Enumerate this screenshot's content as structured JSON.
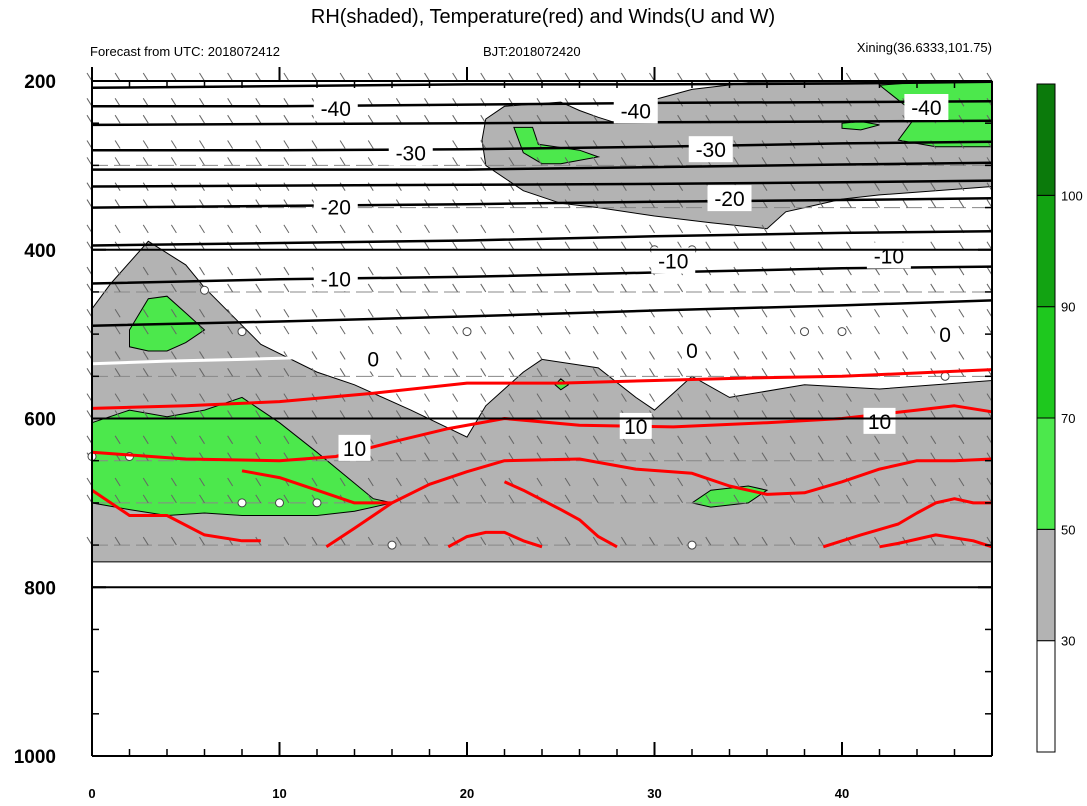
{
  "title": "RH(shaded), Temperature(red) and Winds(U and W)",
  "left_label": "Forecast from UTC: 2018072412",
  "center_label": "BJT:2018072420",
  "right_label": "Xining(36.6333,101.75)",
  "chart_data": {
    "type": "contour",
    "x": {
      "min": 0,
      "max": 48,
      "ticks": [
        0,
        10,
        20,
        30,
        40
      ],
      "tick_labels": [
        "0",
        "10",
        "20",
        "30",
        "40"
      ]
    },
    "y": {
      "min": 200,
      "max": 1000,
      "ticks": [
        200,
        400,
        600,
        800,
        1000
      ],
      "tick_labels": [
        "200",
        "400",
        "600",
        "800",
        "1000"
      ],
      "inverted": true
    },
    "colorbar": {
      "levels": [
        30,
        50,
        70,
        90,
        100
      ],
      "labels": [
        "30",
        "50",
        "70",
        "90",
        "100"
      ],
      "colors": [
        "#ffffff",
        "#b3b3b3",
        "#4ce84c",
        "#1ec81e",
        "#12a312",
        "#0b7a0b"
      ]
    },
    "rh_regions": [
      {
        "level": 30,
        "color": "#b3b3b3",
        "points": [
          [
            0,
            770
          ],
          [
            48,
            770
          ],
          [
            48,
            555
          ],
          [
            42,
            565
          ],
          [
            38,
            560
          ],
          [
            34,
            575
          ],
          [
            32,
            550
          ],
          [
            31,
            570
          ],
          [
            30,
            590
          ],
          [
            29,
            575
          ],
          [
            27,
            540
          ],
          [
            24,
            530
          ],
          [
            23,
            545
          ],
          [
            21,
            585
          ],
          [
            20,
            622
          ],
          [
            17,
            590
          ],
          [
            14,
            560
          ],
          [
            12,
            545
          ],
          [
            9,
            512
          ],
          [
            6,
            445
          ],
          [
            5,
            418
          ],
          [
            3,
            390
          ],
          [
            1,
            440
          ],
          [
            0,
            470
          ]
        ]
      },
      {
        "level": 30,
        "color": "#b3b3b3",
        "points": [
          [
            21,
            245
          ],
          [
            22,
            230
          ],
          [
            25,
            225
          ],
          [
            26,
            235
          ],
          [
            27,
            243
          ],
          [
            28,
            250
          ],
          [
            30,
            222
          ],
          [
            32,
            210
          ],
          [
            35,
            202
          ],
          [
            48,
            202
          ],
          [
            48,
            325
          ],
          [
            45,
            330
          ],
          [
            42,
            335
          ],
          [
            40,
            340
          ],
          [
            38,
            350
          ],
          [
            37,
            355
          ],
          [
            36,
            375
          ],
          [
            33,
            368
          ],
          [
            30,
            360
          ],
          [
            27,
            350
          ],
          [
            25,
            345
          ],
          [
            23,
            330
          ],
          [
            21,
            300
          ],
          [
            20.8,
            270
          ]
        ]
      },
      {
        "level": 50,
        "color": "#4ce84c",
        "points": [
          [
            0,
            605
          ],
          [
            2,
            590
          ],
          [
            4,
            598
          ],
          [
            6,
            590
          ],
          [
            8,
            575
          ],
          [
            10,
            605
          ],
          [
            12,
            640
          ],
          [
            15,
            695
          ],
          [
            16,
            700
          ],
          [
            14,
            710
          ],
          [
            12,
            715
          ],
          [
            10,
            715
          ],
          [
            8,
            715
          ],
          [
            6,
            712
          ],
          [
            4,
            715
          ],
          [
            2,
            708
          ],
          [
            0,
            700
          ]
        ]
      },
      {
        "level": 50,
        "color": "#4ce84c",
        "points": [
          [
            2,
            495
          ],
          [
            3,
            458
          ],
          [
            4,
            455
          ],
          [
            5,
            475
          ],
          [
            6,
            495
          ],
          [
            5,
            510
          ],
          [
            4,
            520
          ],
          [
            3,
            520
          ],
          [
            2,
            515
          ]
        ]
      },
      {
        "level": 50,
        "color": "#4ce84c",
        "points": [
          [
            32,
            700
          ],
          [
            33,
            685
          ],
          [
            35,
            680
          ],
          [
            36,
            685
          ],
          [
            35,
            700
          ],
          [
            33,
            705
          ]
        ]
      },
      {
        "level": 50,
        "color": "#4ce84c",
        "points": [
          [
            42,
            205
          ],
          [
            45,
            200
          ],
          [
            48,
            200
          ],
          [
            48,
            278
          ],
          [
            45,
            278
          ],
          [
            43,
            270
          ],
          [
            44,
            240
          ]
        ]
      },
      {
        "level": 50,
        "color": "#4ce84c",
        "points": [
          [
            22.5,
            255
          ],
          [
            23.5,
            255
          ],
          [
            23.8,
            275
          ],
          [
            26,
            282
          ],
          [
            27,
            290
          ],
          [
            25,
            298
          ],
          [
            24,
            298
          ],
          [
            23,
            285
          ]
        ]
      },
      {
        "level": 50,
        "color": "#4ce84c",
        "points": [
          [
            40,
            250
          ],
          [
            41,
            248
          ],
          [
            42,
            252
          ],
          [
            41,
            258
          ],
          [
            40,
            256
          ]
        ]
      },
      {
        "level": 50,
        "color": "#4ce84c",
        "points": [
          [
            24.7,
            560
          ],
          [
            25,
            553
          ],
          [
            25.4,
            560
          ],
          [
            25,
            566
          ]
        ]
      }
    ],
    "temperature_lines": [
      {
        "label": "-40",
        "color": "#000000",
        "points": [
          [
            0,
            208
          ],
          [
            10,
            206
          ],
          [
            20,
            204
          ],
          [
            30,
            204
          ],
          [
            40,
            203
          ],
          [
            48,
            201
          ]
        ]
      },
      {
        "label": "-40",
        "color": "#000000",
        "points": [
          [
            0,
            230
          ],
          [
            10,
            230
          ],
          [
            20,
            228
          ],
          [
            30,
            226
          ],
          [
            40,
            225
          ],
          [
            48,
            224
          ]
        ]
      },
      {
        "label": "-40",
        "color": "#000000",
        "points": [
          [
            0,
            252
          ],
          [
            10,
            251
          ],
          [
            20,
            250
          ],
          [
            30,
            249
          ],
          [
            40,
            248
          ],
          [
            48,
            247
          ]
        ]
      },
      {
        "label": "-30",
        "color": "#000000",
        "points": [
          [
            0,
            282
          ],
          [
            10,
            282
          ],
          [
            20,
            281
          ],
          [
            30,
            278
          ],
          [
            40,
            274
          ],
          [
            48,
            272
          ]
        ]
      },
      {
        "label": "-30",
        "color": "#000000",
        "points": [
          [
            0,
            305
          ],
          [
            10,
            305
          ],
          [
            20,
            305
          ],
          [
            30,
            302
          ],
          [
            40,
            299
          ],
          [
            48,
            297
          ]
        ]
      },
      {
        "label": "-20",
        "color": "#000000",
        "points": [
          [
            0,
            325
          ],
          [
            10,
            324
          ],
          [
            20,
            323
          ],
          [
            30,
            322
          ],
          [
            40,
            320
          ],
          [
            48,
            318
          ]
        ]
      },
      {
        "label": "-20",
        "color": "#000000",
        "points": [
          [
            0,
            350
          ],
          [
            10,
            348
          ],
          [
            20,
            346
          ],
          [
            30,
            343
          ],
          [
            40,
            341
          ],
          [
            48,
            339
          ]
        ]
      },
      {
        "label": "-10",
        "color": "#000000",
        "points": [
          [
            0,
            395
          ],
          [
            10,
            392
          ],
          [
            20,
            389
          ],
          [
            30,
            384
          ],
          [
            40,
            380
          ],
          [
            48,
            378
          ]
        ]
      },
      {
        "label": "-10",
        "color": "#000000",
        "points": [
          [
            0,
            440
          ],
          [
            10,
            435
          ],
          [
            20,
            432
          ],
          [
            30,
            427
          ],
          [
            40,
            422
          ],
          [
            48,
            420
          ]
        ]
      },
      {
        "label": "-10",
        "color": "#000000",
        "points": [
          [
            0,
            490
          ],
          [
            10,
            485
          ],
          [
            20,
            479
          ],
          [
            30,
            472
          ],
          [
            40,
            466
          ],
          [
            48,
            460
          ]
        ]
      },
      {
        "label": "0",
        "color": "#ffffff",
        "points": [
          [
            0,
            535
          ],
          [
            4,
            532
          ],
          [
            8,
            530
          ],
          [
            11,
            528
          ]
        ]
      },
      {
        "label": "0",
        "color": "#ffffff",
        "points": [
          [
            23,
            520
          ],
          [
            27,
            517
          ],
          [
            29,
            516
          ]
        ]
      },
      {
        "label": "10",
        "color": "#ff0000",
        "points": [
          [
            0,
            588
          ],
          [
            5,
            585
          ],
          [
            10,
            580
          ],
          [
            15,
            570
          ],
          [
            20,
            558
          ],
          [
            25,
            558
          ],
          [
            30,
            555
          ],
          [
            35,
            552
          ],
          [
            40,
            550
          ],
          [
            45,
            545
          ],
          [
            48,
            542
          ]
        ]
      },
      {
        "label": "10",
        "color": "#ff0000",
        "points": [
          [
            0,
            640
          ],
          [
            5,
            648
          ],
          [
            10,
            650
          ],
          [
            13,
            645
          ],
          [
            16,
            628
          ],
          [
            19,
            612
          ],
          [
            22,
            600
          ],
          [
            26,
            608
          ],
          [
            31,
            610
          ],
          [
            36,
            605
          ],
          [
            40,
            600
          ],
          [
            44,
            590
          ],
          [
            46,
            585
          ],
          [
            48,
            592
          ]
        ]
      },
      {
        "label": "",
        "color": "#ff0000",
        "points": [
          [
            0,
            685
          ],
          [
            1,
            700
          ],
          [
            2,
            715
          ],
          [
            4,
            715
          ],
          [
            6,
            738
          ],
          [
            8,
            745
          ],
          [
            9,
            745
          ]
        ]
      },
      {
        "label": "",
        "color": "#ff0000",
        "points": [
          [
            12.5,
            752
          ],
          [
            14,
            730
          ],
          [
            16,
            700
          ],
          [
            18,
            678
          ],
          [
            20,
            663
          ],
          [
            22,
            650
          ],
          [
            26,
            648
          ],
          [
            29,
            660
          ],
          [
            32,
            665
          ],
          [
            34,
            680
          ],
          [
            36,
            690
          ],
          [
            38,
            688
          ],
          [
            40,
            675
          ],
          [
            42,
            660
          ],
          [
            44,
            650
          ],
          [
            46,
            650
          ],
          [
            48,
            648
          ]
        ]
      },
      {
        "label": "",
        "color": "#ff0000",
        "points": [
          [
            22,
            675
          ],
          [
            23,
            685
          ],
          [
            25,
            708
          ],
          [
            26,
            720
          ],
          [
            27,
            740
          ],
          [
            28,
            752
          ]
        ]
      },
      {
        "label": "",
        "color": "#ff0000",
        "points": [
          [
            19,
            752
          ],
          [
            20,
            740
          ],
          [
            21,
            735
          ],
          [
            22,
            735
          ],
          [
            23,
            745
          ],
          [
            24,
            752
          ]
        ]
      },
      {
        "label": "",
        "color": "#ff0000",
        "points": [
          [
            8,
            662
          ],
          [
            10,
            670
          ],
          [
            12,
            685
          ],
          [
            14,
            700
          ],
          [
            16,
            700
          ]
        ]
      },
      {
        "label": "",
        "color": "#ff0000",
        "points": [
          [
            39,
            752
          ],
          [
            41,
            738
          ],
          [
            43,
            725
          ],
          [
            44,
            712
          ],
          [
            45,
            700
          ],
          [
            46,
            695
          ],
          [
            47,
            700
          ],
          [
            48,
            700
          ]
        ]
      },
      {
        "label": "",
        "color": "#ff0000",
        "points": [
          [
            42,
            752
          ],
          [
            43,
            748
          ],
          [
            45,
            738
          ],
          [
            47,
            745
          ],
          [
            48,
            752
          ]
        ]
      }
    ],
    "contour_labels": [
      {
        "text": "-40",
        "x": 13,
        "y": 233
      },
      {
        "text": "-40",
        "x": 29,
        "y": 236
      },
      {
        "text": "-40",
        "x": 44.5,
        "y": 232
      },
      {
        "text": "-30",
        "x": 17,
        "y": 286
      },
      {
        "text": "-30",
        "x": 33,
        "y": 282
      },
      {
        "text": "-20",
        "x": 13,
        "y": 350
      },
      {
        "text": "-20",
        "x": 34,
        "y": 340
      },
      {
        "text": "-10",
        "x": 13,
        "y": 435
      },
      {
        "text": "-10",
        "x": 31,
        "y": 414
      },
      {
        "text": "-10",
        "x": 42.5,
        "y": 408
      },
      {
        "text": "0",
        "x": 15,
        "y": 530
      },
      {
        "text": "0",
        "x": 32,
        "y": 520
      },
      {
        "text": "0",
        "x": 45.5,
        "y": 501
      },
      {
        "text": "10",
        "x": 14,
        "y": 636
      },
      {
        "text": "10",
        "x": 29,
        "y": 610
      },
      {
        "text": "10",
        "x": 42,
        "y": 604
      }
    ],
    "wind_levels": [
      200,
      230,
      250,
      280,
      300,
      330,
      350,
      380,
      400,
      430,
      450,
      480,
      500,
      530,
      550,
      580,
      600,
      630,
      650,
      680,
      700,
      750
    ]
  }
}
